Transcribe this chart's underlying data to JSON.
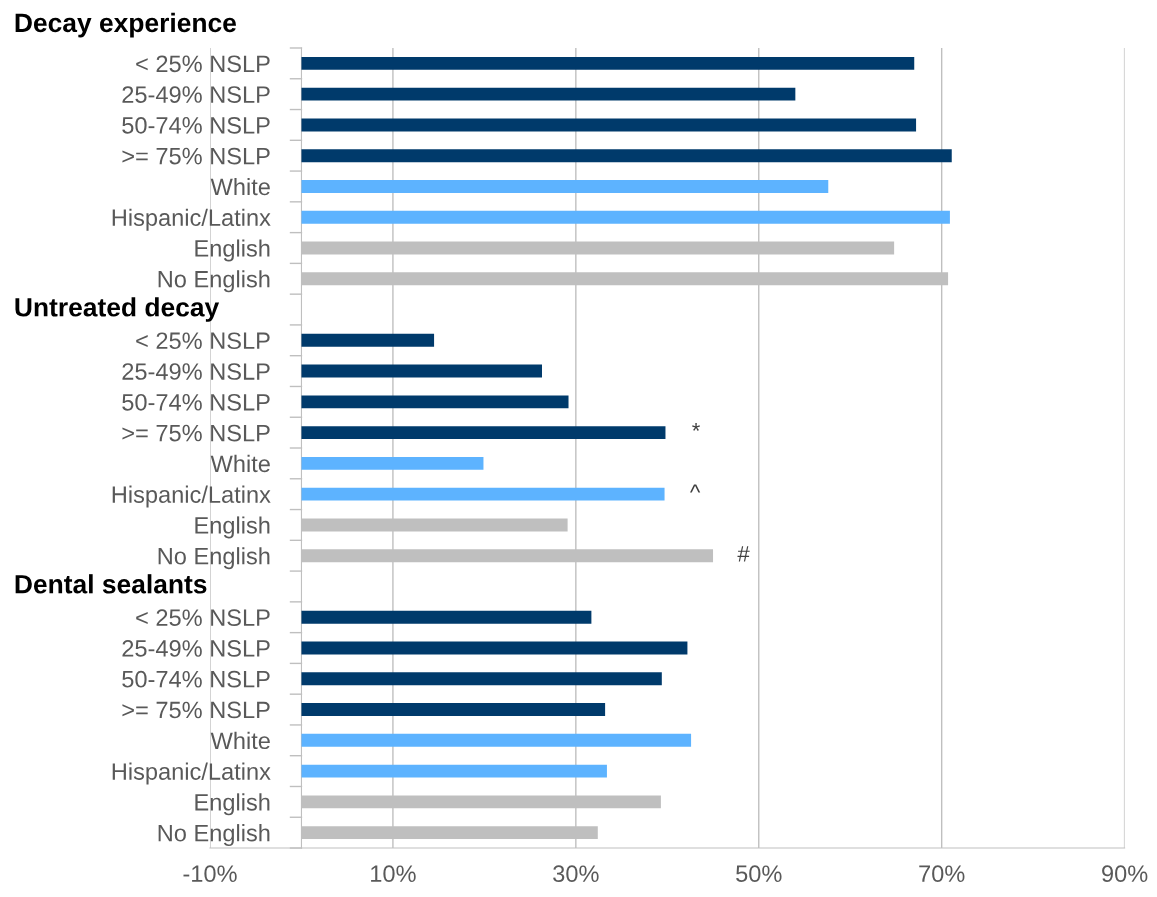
{
  "chart_data": {
    "type": "bar",
    "orientation": "horizontal",
    "categories": [
      "< 25% NSLP",
      "25-49% NSLP",
      "50-74% NSLP",
      ">= 75% NSLP",
      "White",
      "Hispanic/Latinx",
      "English",
      "No English",
      null,
      "< 25% NSLP",
      "25-49% NSLP",
      "50-74% NSLP",
      ">= 75% NSLP",
      "White",
      "Hispanic/Latinx",
      "English",
      "No English",
      null,
      "< 25% NSLP",
      "25-49% NSLP",
      "50-74% NSLP",
      ">= 75% NSLP",
      "White",
      "Hispanic/Latinx",
      "English",
      "No English"
    ],
    "values": [
      67.0,
      54.0,
      67.2,
      71.1,
      57.6,
      70.9,
      64.8,
      70.7,
      null,
      14.5,
      26.3,
      29.2,
      39.8,
      19.9,
      39.7,
      29.1,
      45.0,
      null,
      31.7,
      42.2,
      39.4,
      33.2,
      42.6,
      33.4,
      39.3,
      32.4
    ],
    "colors": [
      "#003a6b",
      "#003a6b",
      "#003a6b",
      "#003a6b",
      "#5db3ff",
      "#5db3ff",
      "#bfbfbf",
      "#bfbfbf",
      null,
      "#003a6b",
      "#003a6b",
      "#003a6b",
      "#003a6b",
      "#5db3ff",
      "#5db3ff",
      "#bfbfbf",
      "#bfbfbf",
      null,
      "#003a6b",
      "#003a6b",
      "#003a6b",
      "#003a6b",
      "#5db3ff",
      "#5db3ff",
      "#bfbfbf",
      "#bfbfbf"
    ],
    "value_labels": [
      null,
      null,
      null,
      null,
      null,
      null,
      null,
      null,
      null,
      null,
      null,
      null,
      "*",
      null,
      "^",
      null,
      "#",
      null,
      null,
      null,
      null,
      null,
      null,
      null,
      null,
      null
    ],
    "annotations": [
      "Decay experience",
      "Untreated decay",
      "Dental sealants"
    ],
    "xlim": [
      -10,
      90
    ],
    "xticks": [
      {
        "value": -10,
        "label": "-10%"
      },
      {
        "value": 10,
        "label": "10%"
      },
      {
        "value": 30,
        "label": "30%"
      },
      {
        "value": 50,
        "label": "50%"
      },
      {
        "value": 70,
        "label": "70%"
      },
      {
        "value": 90,
        "label": "90%"
      }
    ],
    "grid": "x"
  }
}
